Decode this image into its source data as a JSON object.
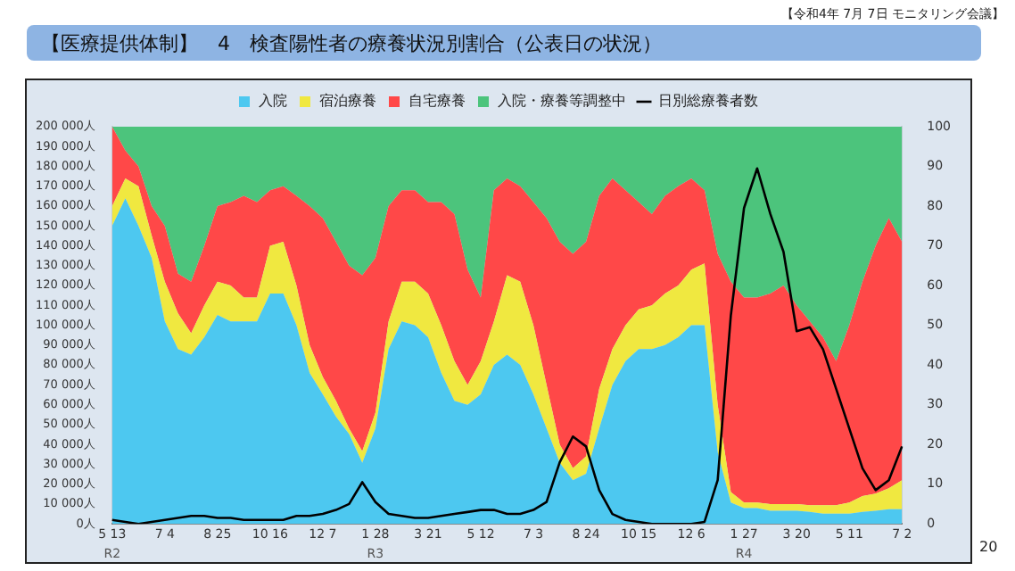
{
  "chart_data": {
    "type": "area",
    "stacked": true,
    "title": "【医療提供体制】　4　検査陽性者の療養状況別割合（公表日の状況）",
    "categories": [
      "5 13",
      null,
      null,
      null,
      "7 4",
      null,
      null,
      null,
      "8 25",
      null,
      null,
      null,
      "10 16",
      null,
      null,
      null,
      "12 7",
      null,
      null,
      null,
      "1 28",
      null,
      null,
      null,
      "3 21",
      null,
      null,
      null,
      "5 12",
      null,
      null,
      null,
      "7 3",
      null,
      null,
      null,
      "8 24",
      null,
      null,
      null,
      "10 15",
      null,
      null,
      null,
      "12 6",
      null,
      null,
      null,
      "1 27",
      null,
      null,
      null,
      "3 20",
      null,
      null,
      null,
      "5 11",
      null,
      null,
      null,
      "7 2"
    ],
    "series": [
      {
        "name": "入院",
        "type": "area",
        "axis": "y2",
        "color": "#4dc8f0",
        "values": [
          75,
          82,
          75,
          67,
          51,
          44,
          42.6,
          47,
          52.6,
          51,
          51,
          51,
          58,
          58,
          50,
          38,
          32.6,
          27,
          22.6,
          15.4,
          24,
          44,
          51,
          50,
          47,
          38,
          31,
          30,
          32.6,
          40,
          42.6,
          40,
          32.6,
          24,
          15.4,
          11,
          12.6,
          24,
          35,
          41,
          44,
          44,
          45,
          47,
          50,
          50,
          18,
          5.4,
          4,
          4,
          3.3,
          3.3,
          3.3,
          3,
          2.6,
          2.6,
          2.6,
          3,
          3.3,
          3.7,
          3.7
        ]
      },
      {
        "name": "宿泊療養",
        "type": "area",
        "axis": "y2",
        "color": "#f0e840",
        "values": [
          5,
          5,
          10,
          5.6,
          10,
          9,
          5.4,
          8,
          8.4,
          9,
          6,
          6,
          12,
          13,
          10,
          7,
          4.4,
          4,
          1.4,
          2.9,
          4,
          7,
          10,
          11,
          11,
          12,
          10,
          5,
          8.4,
          11,
          20,
          21,
          17.4,
          11,
          4.6,
          3,
          4.4,
          10,
          9,
          9,
          10,
          11,
          13,
          13,
          14,
          15.6,
          12,
          2.6,
          1.4,
          1.4,
          1.7,
          1.7,
          1.7,
          1.7,
          2.1,
          2.1,
          2.8,
          4,
          4.3,
          5.3,
          7.3
        ]
      },
      {
        "name": "自宅療養",
        "type": "area",
        "axis": "y2",
        "color": "#ff4848",
        "values": [
          20,
          7,
          5,
          7.4,
          14,
          10,
          13,
          15,
          19,
          21,
          25.6,
          24,
          14,
          14,
          22.6,
          35,
          40,
          40,
          41,
          44.3,
          39,
          29,
          23,
          23,
          23,
          31,
          37,
          29,
          16,
          33,
          24.4,
          24,
          31,
          42,
          51,
          54,
          54,
          48.6,
          43,
          34,
          27,
          23,
          24.6,
          25,
          23,
          18.4,
          38,
          53,
          51.6,
          51.6,
          53,
          55,
          50,
          46.3,
          42.3,
          36.3,
          44.6,
          54,
          62.4,
          68,
          60
        ]
      },
      {
        "name": "入院・療養等調整中",
        "type": "area",
        "axis": "y2",
        "color": "#4cc47c",
        "values": [
          0,
          6,
          10,
          20,
          25,
          37,
          39,
          30,
          20,
          19,
          17.4,
          19,
          16,
          15,
          17.4,
          20,
          23,
          29,
          35,
          37.4,
          33,
          20,
          16,
          16,
          19,
          19,
          22,
          36,
          43,
          16,
          13,
          15,
          19,
          23,
          29,
          32,
          29,
          17.4,
          13,
          16,
          19,
          22,
          17.4,
          15,
          13,
          16,
          32,
          39,
          43,
          43,
          42,
          40,
          45,
          49,
          53,
          59,
          50,
          39,
          30,
          23,
          29
        ]
      },
      {
        "name": "日別総療養者数",
        "type": "line",
        "color": "#000000",
        "values": [
          2000,
          1000,
          0,
          1000,
          2000,
          3000,
          4000,
          4000,
          3000,
          3000,
          2000,
          2000,
          2000,
          2000,
          4000,
          4000,
          5000,
          7000,
          10000,
          21000,
          11000,
          5000,
          4000,
          3000,
          3000,
          4000,
          5000,
          6000,
          7000,
          7000,
          5000,
          5000,
          7000,
          11000,
          31000,
          44000,
          39000,
          17000,
          5000,
          2000,
          1000,
          0,
          0,
          0,
          0,
          1000,
          22000,
          105000,
          159000,
          179000,
          156000,
          137000,
          97000,
          99000,
          88000,
          68000,
          48000,
          28000,
          17000,
          22000,
          39000
        ]
      }
    ],
    "ylim": [
      0,
      200000
    ],
    "yticks": [
      {
        "value": 0,
        "label": "0人"
      },
      {
        "value": 10000,
        "label": "10 000人"
      },
      {
        "value": 20000,
        "label": "20 000人"
      },
      {
        "value": 30000,
        "label": "30 000人"
      },
      {
        "value": 40000,
        "label": "40 000人"
      },
      {
        "value": 50000,
        "label": "50 000人"
      },
      {
        "value": 60000,
        "label": "60 000人"
      },
      {
        "value": 70000,
        "label": "70 000人"
      },
      {
        "value": 80000,
        "label": "80 000人"
      },
      {
        "value": 90000,
        "label": "90 000人"
      },
      {
        "value": 100000,
        "label": "100 000人"
      },
      {
        "value": 110000,
        "label": "110 000人"
      },
      {
        "value": 120000,
        "label": "120 000人"
      },
      {
        "value": 130000,
        "label": "130 000人"
      },
      {
        "value": 140000,
        "label": "140 000人"
      },
      {
        "value": 150000,
        "label": "150 000人"
      },
      {
        "value": 160000,
        "label": "160 000人"
      },
      {
        "value": 170000,
        "label": "170 000人"
      },
      {
        "value": 180000,
        "label": "180 000人"
      },
      {
        "value": 190000,
        "label": "190 000人"
      },
      {
        "value": 200000,
        "label": "200 000人"
      }
    ],
    "y2lim": [
      0,
      100
    ],
    "y2ticks": [
      0,
      10,
      20,
      30,
      40,
      50,
      60,
      70,
      80,
      90,
      100
    ],
    "legend": "top",
    "grid": false,
    "annotations": [
      "【令和4年 7月 7日 モニタリング会議】",
      "20",
      "R2",
      "R3",
      "R4"
    ]
  }
}
